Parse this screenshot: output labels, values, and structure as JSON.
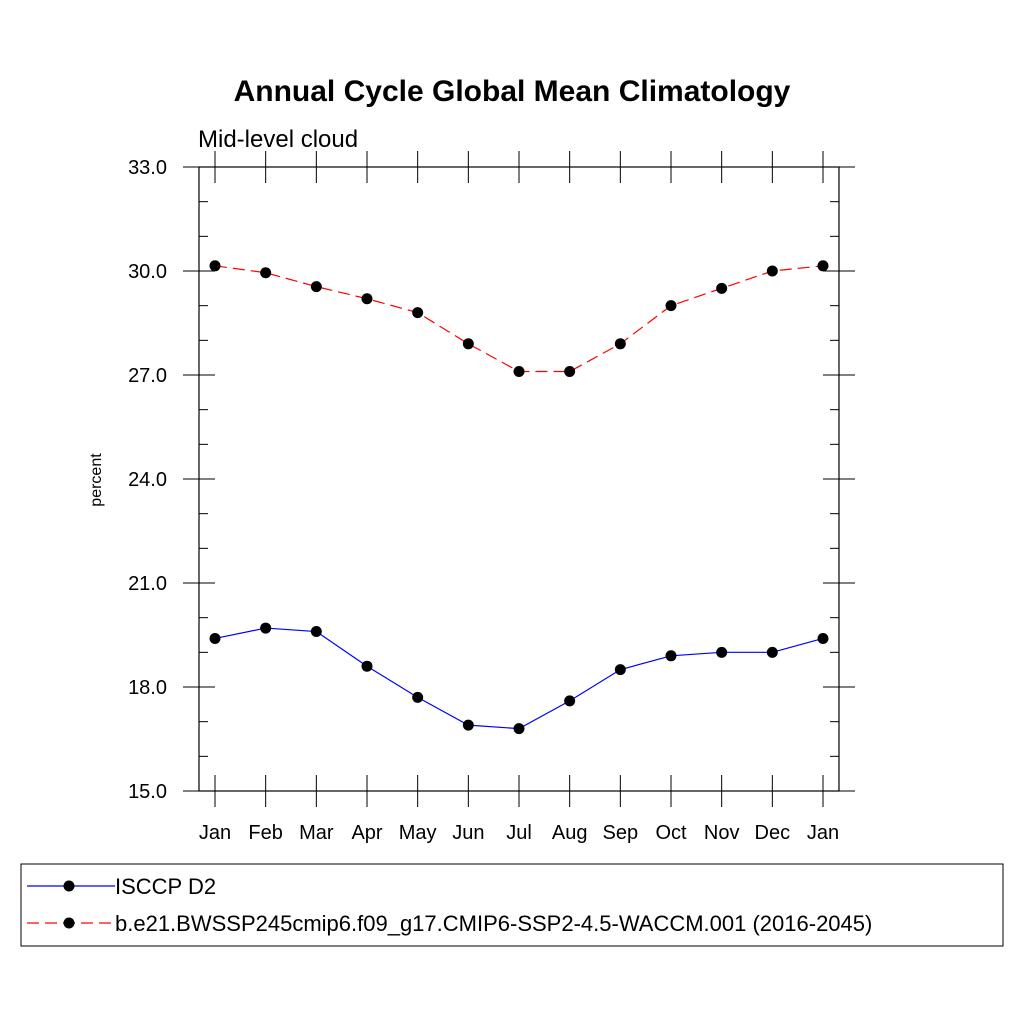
{
  "chart_data": {
    "type": "line",
    "title": "Annual Cycle Global Mean Climatology",
    "subtitle": "Mid-level cloud",
    "xlabel": "",
    "ylabel": "percent",
    "categories": [
      "Jan",
      "Feb",
      "Mar",
      "Apr",
      "May",
      "Jun",
      "Jul",
      "Aug",
      "Sep",
      "Oct",
      "Nov",
      "Dec",
      "Jan"
    ],
    "ylim": [
      15.0,
      33.0
    ],
    "yticks": [
      "15.0",
      "18.0",
      "21.0",
      "24.0",
      "27.0",
      "30.0",
      "33.0"
    ],
    "grid": false,
    "legend_position": "bottom",
    "series": [
      {
        "name": "ISCCP D2",
        "color": "#0000ff",
        "dash": "solid",
        "marker": "circle",
        "values": [
          19.4,
          19.7,
          19.6,
          18.6,
          17.7,
          16.9,
          16.8,
          17.6,
          18.5,
          18.9,
          19.0,
          19.0,
          19.4
        ]
      },
      {
        "name": "b.e21.BWSSP245cmip6.f09_g17.CMIP6-SSP2-4.5-WACCM.001 (2016-2045)",
        "color": "#ff0000",
        "dash": "dashed",
        "marker": "circle",
        "values": [
          30.15,
          29.95,
          29.55,
          29.2,
          28.8,
          27.9,
          27.1,
          27.1,
          27.9,
          29.0,
          29.5,
          30.0,
          30.15
        ]
      }
    ]
  }
}
